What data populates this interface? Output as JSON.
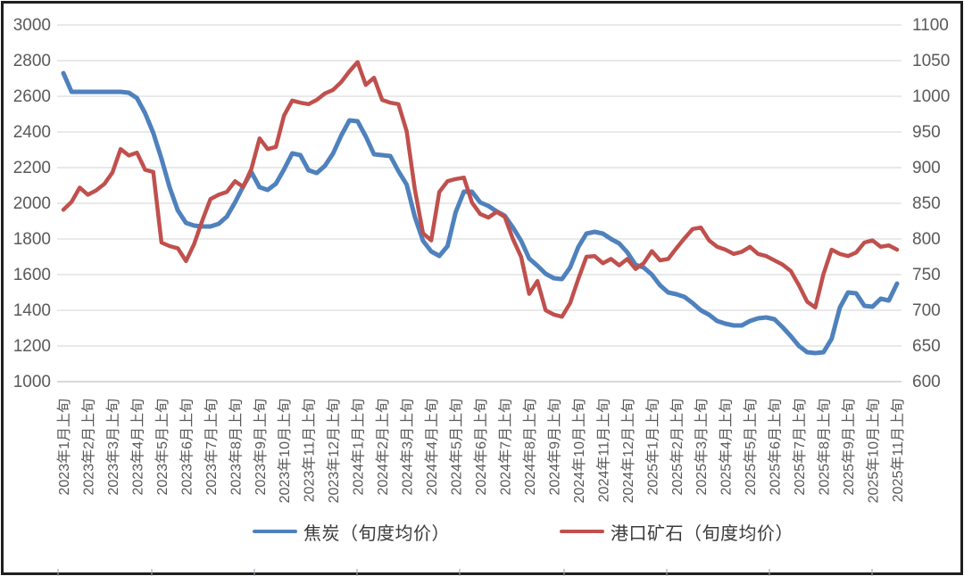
{
  "chart_data": {
    "type": "line",
    "title": "",
    "grid": true,
    "legend_position": "bottom",
    "points_per_month": 3,
    "x_note": "Three data points per month (ten-day periods); axis labeled on first period of each month",
    "x_tick_labels": [
      "2023年1月上旬",
      "2023年2月上旬",
      "2023年3月上旬",
      "2023年4月上旬",
      "2023年5月上旬",
      "2023年6月上旬",
      "2023年7月上旬",
      "2023年8月上旬",
      "2023年9月上旬",
      "2023年10月上旬",
      "2023年11月上旬",
      "2023年12月上旬",
      "2024年1月上旬",
      "2024年2月上旬",
      "2024年3月上旬",
      "2024年4月上旬",
      "2024年5月上旬",
      "2024年6月上旬",
      "2024年7月上旬",
      "2024年8月上旬",
      "2024年9月上旬",
      "2024年10月上旬",
      "2024年11月上旬",
      "2024年12月上旬",
      "2025年1月上旬",
      "2025年2月上旬",
      "2025年3月上旬",
      "2025年4月上旬",
      "2025年5月上旬",
      "2025年6月上旬",
      "2025年7月上旬",
      "2025年8月上旬",
      "2025年9月上旬",
      "2025年10月上旬",
      "2025年11月上旬"
    ],
    "left_axis": {
      "min": 1000,
      "max": 3000,
      "step": 200,
      "ticks": [
        "3000",
        "2800",
        "2600",
        "2400",
        "2200",
        "2000",
        "1800",
        "1600",
        "1400",
        "1200",
        "1000"
      ]
    },
    "right_axis": {
      "min": 600,
      "max": 1100,
      "step": 50,
      "ticks": [
        "1100",
        "1050",
        "1000",
        "950",
        "900",
        "850",
        "800",
        "750",
        "700",
        "650",
        "600"
      ]
    },
    "series": [
      {
        "name": "焦炭（旬度均价）",
        "axis": "left",
        "color": "#4F81BD",
        "values": [
          2730,
          2625,
          2625,
          2625,
          2625,
          2625,
          2625,
          2625,
          2620,
          2590,
          2505,
          2395,
          2250,
          2090,
          1960,
          1890,
          1875,
          1870,
          1870,
          1885,
          1925,
          2005,
          2095,
          2175,
          2090,
          2075,
          2110,
          2190,
          2280,
          2270,
          2185,
          2170,
          2210,
          2280,
          2380,
          2465,
          2460,
          2375,
          2275,
          2270,
          2265,
          2180,
          2105,
          1925,
          1790,
          1730,
          1705,
          1760,
          1950,
          2065,
          2065,
          2005,
          1985,
          1955,
          1930,
          1865,
          1790,
          1690,
          1650,
          1605,
          1580,
          1575,
          1640,
          1755,
          1830,
          1840,
          1830,
          1800,
          1775,
          1725,
          1655,
          1640,
          1600,
          1540,
          1500,
          1490,
          1475,
          1440,
          1400,
          1375,
          1340,
          1325,
          1315,
          1315,
          1340,
          1355,
          1360,
          1350,
          1305,
          1255,
          1200,
          1165,
          1160,
          1165,
          1240,
          1415,
          1500,
          1495,
          1425,
          1420,
          1465,
          1455,
          1550
        ]
      },
      {
        "name": "港口矿石（旬度均价）",
        "axis": "right",
        "color": "#C0504D",
        "values": [
          841,
          852,
          872,
          862,
          868,
          877,
          893,
          926,
          917,
          921,
          897,
          894,
          795,
          790,
          787,
          769,
          793,
          826,
          856,
          862,
          866,
          881,
          873,
          898,
          941,
          926,
          929,
          973,
          994,
          991,
          989,
          995,
          1004,
          1009,
          1020,
          1035,
          1048,
          1016,
          1026,
          995,
          991,
          989,
          951,
          870,
          808,
          798,
          866,
          881,
          884,
          886,
          851,
          835,
          830,
          838,
          831,
          800,
          775,
          723,
          741,
          700,
          694,
          691,
          710,
          744,
          775,
          776,
          766,
          772,
          763,
          772,
          758,
          766,
          783,
          770,
          772,
          787,
          801,
          814,
          816,
          798,
          789,
          785,
          779,
          782,
          789,
          779,
          776,
          770,
          764,
          755,
          735,
          712,
          704,
          751,
          785,
          779,
          776,
          781,
          795,
          798,
          789,
          791,
          785
        ]
      }
    ]
  },
  "colors": {
    "coke_line": "#4F81BD",
    "ore_line": "#C0504D",
    "gridline": "#DCDCDC",
    "axis_line": "#C2C2C2",
    "tick_label": "#595959",
    "frame": "#1f1f1f",
    "outer_tick": "#9aa7b8"
  },
  "legend": {
    "coke_label": "焦炭（旬度均价）",
    "ore_label": "港口矿石（旬度均价）"
  }
}
